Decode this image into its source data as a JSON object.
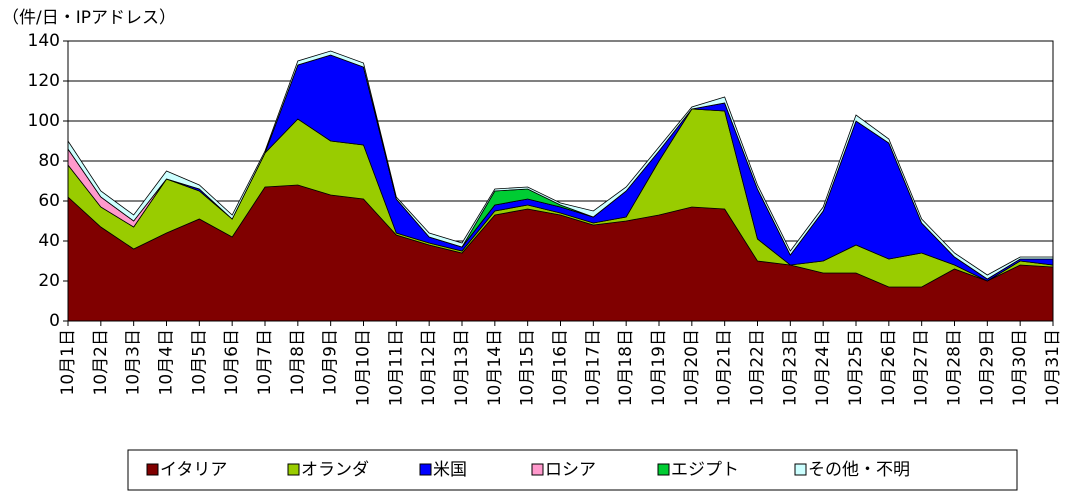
{
  "chart_data": {
    "type": "stacked-area",
    "y_axis_label": "（件/日・IPアドレス）",
    "categories": [
      "10月1日",
      "10月2日",
      "10月3日",
      "10月4日",
      "10月5日",
      "10月6日",
      "10月7日",
      "10月8日",
      "10月9日",
      "10月10日",
      "10月11日",
      "10月12日",
      "10月13日",
      "10月14日",
      "10月15日",
      "10月16日",
      "10月17日",
      "10月18日",
      "10月19日",
      "10月20日",
      "10月21日",
      "10月22日",
      "10月23日",
      "10月24日",
      "10月25日",
      "10月26日",
      "10月27日",
      "10月28日",
      "10月29日",
      "10月30日",
      "10月31日"
    ],
    "series": [
      {
        "name": "イタリア",
        "color": "#800000",
        "values": [
          62,
          47,
          36,
          44,
          51,
          42,
          67,
          68,
          63,
          61,
          43,
          38,
          34,
          53,
          56,
          53,
          48,
          50,
          53,
          57,
          56,
          30,
          28,
          24,
          24,
          17,
          17,
          26,
          20,
          28,
          27
        ]
      },
      {
        "name": "オランダ",
        "color": "#99cc00",
        "values": [
          16,
          10,
          11,
          27,
          14,
          9,
          17,
          33,
          27,
          27,
          1,
          1,
          1,
          2,
          2,
          1,
          1,
          2,
          27,
          49,
          49,
          11,
          0,
          6,
          14,
          14,
          17,
          2,
          0,
          2,
          1
        ]
      },
      {
        "name": "米国",
        "color": "#0000ff",
        "values": [
          0,
          0,
          0,
          0,
          1,
          0,
          0,
          27,
          43,
          39,
          17,
          3,
          2,
          3,
          3,
          3,
          3,
          13,
          5,
          0,
          4,
          25,
          5,
          25,
          62,
          58,
          15,
          4,
          1,
          1,
          3
        ]
      },
      {
        "name": "ロシア",
        "color": "#ff99cc",
        "values": [
          8,
          5,
          3,
          0,
          0,
          0,
          0,
          0,
          0,
          0,
          0,
          0,
          0,
          0,
          0,
          0,
          0,
          0,
          0,
          0,
          0,
          0,
          0,
          0,
          0,
          0,
          0,
          0,
          0,
          0,
          0
        ]
      },
      {
        "name": "エジプト",
        "color": "#00cc33",
        "values": [
          0,
          0,
          0,
          0,
          0,
          0,
          0,
          0,
          0,
          0,
          0,
          0,
          0,
          7,
          5,
          1,
          0,
          0,
          0,
          0,
          0,
          0,
          0,
          0,
          0,
          0,
          0,
          0,
          0,
          0,
          0
        ]
      },
      {
        "name": "その他・不明",
        "color": "#ccffff",
        "values": [
          4,
          3,
          3,
          4,
          2,
          2,
          1,
          2,
          2,
          2,
          1,
          2,
          2,
          1,
          1,
          1,
          3,
          2,
          2,
          1,
          3,
          2,
          2,
          2,
          3,
          2,
          2,
          2,
          2,
          1,
          1
        ]
      }
    ],
    "ylim": [
      0,
      140
    ],
    "yticks": [
      0,
      20,
      40,
      60,
      80,
      100,
      120,
      140
    ],
    "grid": true,
    "legend": "bottom"
  }
}
